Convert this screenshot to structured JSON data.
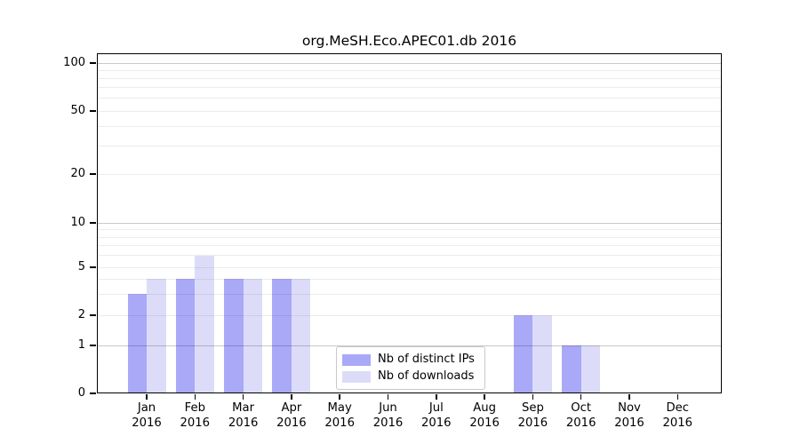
{
  "title": "org.MeSH.Eco.APEC01.db 2016",
  "chart_data": {
    "type": "bar",
    "title": "org.MeSH.Eco.APEC01.db 2016",
    "year_label": "2016",
    "categories": [
      "Jan",
      "Feb",
      "Mar",
      "Apr",
      "May",
      "Jun",
      "Jul",
      "Aug",
      "Sep",
      "Oct",
      "Nov",
      "Dec"
    ],
    "series": [
      {
        "name": "Nb of distinct IPs",
        "color": "#a9a9f7",
        "values": [
          3,
          4,
          4,
          4,
          0,
          0,
          0,
          0,
          2,
          1,
          0,
          0
        ]
      },
      {
        "name": "Nb of downloads",
        "color": "#dcdcf9",
        "values": [
          4,
          6,
          4,
          4,
          0,
          0,
          0,
          0,
          2,
          1,
          0,
          0
        ]
      }
    ],
    "xlabel": "",
    "ylabel": "",
    "y_ticks": [
      0,
      1,
      2,
      5,
      10,
      20,
      50,
      100
    ],
    "y_major_gridlines": [
      1,
      10,
      100
    ],
    "y_minor_gridlines": [
      2,
      3,
      4,
      5,
      6,
      7,
      8,
      9,
      20,
      30,
      40,
      50,
      60,
      70,
      80,
      90
    ],
    "ylim": [
      0,
      100
    ],
    "y_scale": "log above 1, linear segment from 0 to 1",
    "grid": true,
    "legend_position": "bottom-center-inside"
  },
  "legend": {
    "items": [
      "Nb of distinct IPs",
      "Nb of downloads"
    ]
  },
  "colors": {
    "distinct_ips": "#a9a9f7",
    "downloads": "#dcdcf9",
    "axis": "#000000",
    "text": "#000000",
    "background": "#ffffff",
    "grid_major": "rgba(0,0,0,0.21)",
    "grid_minor": "rgba(0,0,0,0.075)",
    "legend_border": "#c9c9c9"
  }
}
